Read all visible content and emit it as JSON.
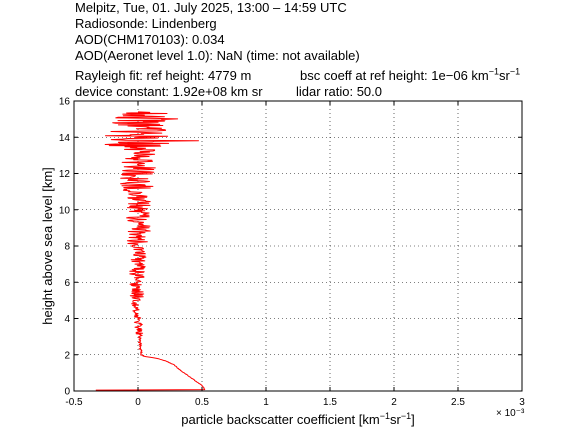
{
  "header": {
    "title_line": "Melpitz, Tue, 01. July 2025, 13:00 – 14:59 UTC",
    "radiosonde": "Radiosonde: Lindenberg",
    "aod_chm": "AOD(CHM170103): 0.034",
    "aod_aeronet": "AOD(Aeronet level 1.0): NaN   (time: not available)",
    "rayleigh_fit": "Rayleigh fit:     ref height: 4779 m",
    "bsc_coeff_prefix": "bsc coeff at ref height: 1e−06 km",
    "bsc_coeff_exp1": "−1",
    "bsc_coeff_mid": "sr",
    "bsc_coeff_exp2": "−1",
    "device_constant": "device constant: 1.92e+08 km sr",
    "lidar_ratio": "lidar ratio: 50.0"
  },
  "colors": {
    "line": "#ff0000",
    "grid": "#000000",
    "axes": "#000000"
  },
  "chart_data": {
    "type": "line",
    "title": "",
    "xlabel": "particle backscatter coefficient [km⁻¹sr⁻¹]",
    "xlabel_parts": {
      "pre": "particle backscatter coefficient [km",
      "exp1": "−1",
      "mid": "sr",
      "exp2": "−1",
      "post": "]"
    },
    "x_multiplier_label": "× 10⁻³",
    "ylabel": "height above sea level [km]",
    "xlim": [
      -0.0005,
      0.003
    ],
    "ylim": [
      0,
      16
    ],
    "grid": true,
    "x_ticks": [
      -0.0005,
      0,
      0.0005,
      0.001,
      0.0015,
      0.002,
      0.0025,
      0.003
    ],
    "x_tick_labels": [
      "-0.5",
      "0",
      "0.5",
      "1",
      "1.5",
      "2",
      "2.5",
      "3"
    ],
    "y_ticks": [
      0,
      2,
      4,
      6,
      8,
      10,
      12,
      14,
      16
    ],
    "y_tick_labels": [
      "0",
      "2",
      "4",
      "6",
      "8",
      "10",
      "12",
      "14",
      "16"
    ],
    "series": [
      {
        "color": "#ff0000",
        "points": [
          [
            0.00052,
            0.1
          ],
          [
            0.0005,
            0.3
          ],
          [
            0.00044,
            0.6
          ],
          [
            0.00038,
            0.9
          ],
          [
            0.00032,
            1.2
          ],
          [
            0.00028,
            1.45
          ],
          [
            0.00022,
            1.65
          ],
          [
            0.00016,
            1.78
          ],
          [
            0.0001,
            1.86
          ],
          [
            5e-05,
            1.92
          ],
          [
            3e-05,
            2.0
          ],
          [
            2e-05,
            2.3
          ],
          [
            1.5e-05,
            2.7
          ],
          [
            1e-05,
            3.0
          ],
          [
            1e-05,
            3.3
          ],
          [
            5e-06,
            3.6
          ],
          [
            0.0,
            3.9
          ],
          [
            -1e-05,
            4.2
          ],
          [
            -2e-05,
            4.5
          ],
          [
            -2e-05,
            4.8
          ],
          [
            -1e-05,
            5.2
          ],
          [
            -2e-05,
            5.6
          ],
          [
            0.0,
            6.0
          ],
          [
            -1e-05,
            6.5
          ],
          [
            0.0,
            7.0
          ],
          [
            1e-05,
            7.5
          ],
          [
            0.0,
            8.0
          ],
          [
            0.0,
            8.5
          ],
          [
            1e-05,
            9.0
          ],
          [
            0.0,
            9.5
          ],
          [
            0.0,
            10.0
          ],
          [
            1e-05,
            10.5
          ],
          [
            0.0,
            11.0
          ],
          [
            0.0,
            11.5
          ],
          [
            0.0,
            12.0
          ],
          [
            1e-05,
            12.5
          ],
          [
            0.0,
            13.0
          ],
          [
            0.0,
            13.5
          ],
          [
            0.0,
            14.0
          ],
          [
            2e-05,
            14.5
          ],
          [
            0.0,
            15.0
          ],
          [
            0.0,
            15.4
          ]
        ]
      }
    ]
  }
}
